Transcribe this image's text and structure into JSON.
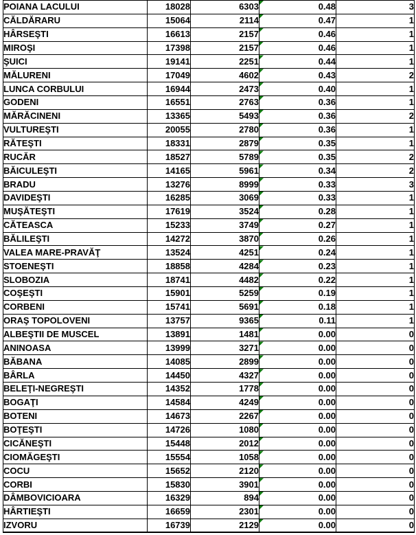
{
  "spreadsheet": {
    "background_color": "#FFFFFF",
    "border_color": "#000000",
    "text_color": "#000000",
    "error_indicator_color": "#107C10",
    "column_kinds": [
      "locality-name",
      "number",
      "number",
      "decimal-with-error-indicator",
      "count"
    ],
    "rows": [
      [
        "POIANA LACULUI",
        "18028",
        "6303",
        "0.48",
        "3"
      ],
      [
        "CĂLDĂRARU",
        "15064",
        "2114",
        "0.47",
        "1"
      ],
      [
        "HÂRSEŞTI",
        "16613",
        "2157",
        "0.46",
        "1"
      ],
      [
        "MIROŞI",
        "17398",
        "2157",
        "0.46",
        "1"
      ],
      [
        "ŞUICI",
        "19141",
        "2251",
        "0.44",
        "1"
      ],
      [
        "MĂLURENI",
        "17049",
        "4602",
        "0.43",
        "2"
      ],
      [
        "LUNCA CORBULUI",
        "16944",
        "2473",
        "0.40",
        "1"
      ],
      [
        "GODENI",
        "16551",
        "2763",
        "0.36",
        "1"
      ],
      [
        "MĂRĂCINENI",
        "13365",
        "5493",
        "0.36",
        "2"
      ],
      [
        "VULTUREŞTI",
        "20055",
        "2780",
        "0.36",
        "1"
      ],
      [
        "RĂTEŞTI",
        "18331",
        "2879",
        "0.35",
        "1"
      ],
      [
        "RUCĂR",
        "18527",
        "5789",
        "0.35",
        "2"
      ],
      [
        "BĂICULEŞTI",
        "14165",
        "5961",
        "0.34",
        "2"
      ],
      [
        "BRADU",
        "13276",
        "8999",
        "0.33",
        "3"
      ],
      [
        "DAVIDEŞTI",
        "16285",
        "3069",
        "0.33",
        "1"
      ],
      [
        "MUŞĂTEŞTI",
        "17619",
        "3524",
        "0.28",
        "1"
      ],
      [
        "CĂTEASCA",
        "15233",
        "3749",
        "0.27",
        "1"
      ],
      [
        "BĂLILEŞTI",
        "14272",
        "3870",
        "0.26",
        "1"
      ],
      [
        "VALEA MARE-PRAVĂŢ",
        "13524",
        "4251",
        "0.24",
        "1"
      ],
      [
        "STOENEŞTI",
        "18858",
        "4284",
        "0.23",
        "1"
      ],
      [
        "SLOBOZIA",
        "18741",
        "4482",
        "0.22",
        "1"
      ],
      [
        "COŞEŞTI",
        "15901",
        "5259",
        "0.19",
        "1"
      ],
      [
        "CORBENI",
        "15741",
        "5691",
        "0.18",
        "1"
      ],
      [
        "ORAŞ TOPOLOVENI",
        "13757",
        "9365",
        "0.11",
        "1"
      ],
      [
        "ALBEŞTII DE MUSCEL",
        "13891",
        "1481",
        "0.00",
        "0"
      ],
      [
        "ANINOASA",
        "13999",
        "3271",
        "0.00",
        "0"
      ],
      [
        "BĂBANA",
        "14085",
        "2899",
        "0.00",
        "0"
      ],
      [
        "BÂRLA",
        "14450",
        "4327",
        "0.00",
        "0"
      ],
      [
        "BELEŢI-NEGREŞTI",
        "14352",
        "1778",
        "0.00",
        "0"
      ],
      [
        "BOGAŢI",
        "14584",
        "4249",
        "0.00",
        "0"
      ],
      [
        "BOTENI",
        "14673",
        "2267",
        "0.00",
        "0"
      ],
      [
        "BOŢEŞTI",
        "14726",
        "1080",
        "0.00",
        "0"
      ],
      [
        "CICĂNEŞTI",
        "15448",
        "2012",
        "0.00",
        "0"
      ],
      [
        "CIOMĂGEŞTI",
        "15554",
        "1058",
        "0.00",
        "0"
      ],
      [
        "COCU",
        "15652",
        "2120",
        "0.00",
        "0"
      ],
      [
        "CORBI",
        "15830",
        "3901",
        "0.00",
        "0"
      ],
      [
        "DÂMBOVICIOARA",
        "16329",
        "894",
        "0.00",
        "0"
      ],
      [
        "HÂRTIEŞTI",
        "16659",
        "2301",
        "0.00",
        "0"
      ],
      [
        "IZVORU",
        "16739",
        "2129",
        "0.00",
        "0"
      ]
    ]
  }
}
